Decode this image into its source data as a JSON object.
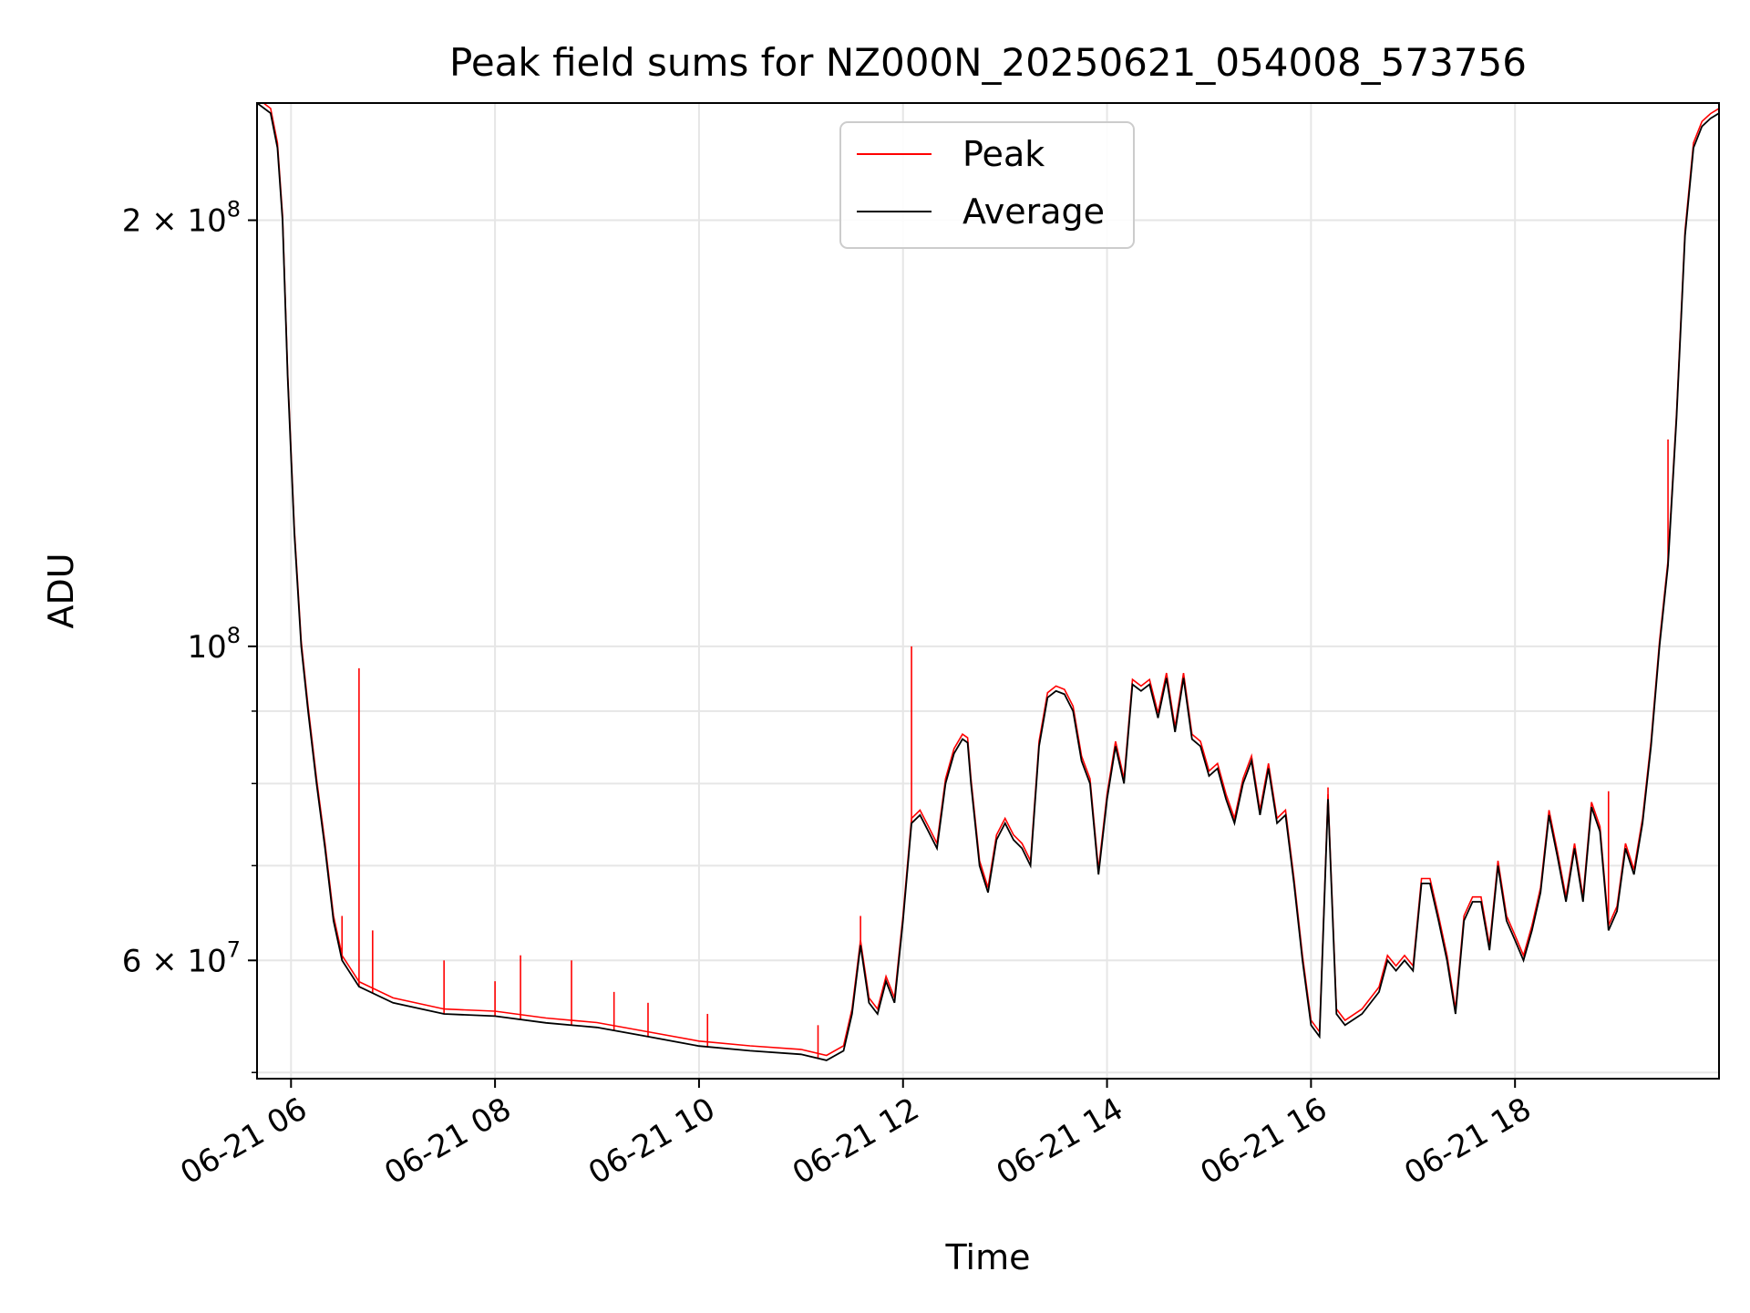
{
  "chart_data": {
    "type": "line",
    "title": "Peak field sums for NZ000N_20250621_054008_573756",
    "xlabel": "Time",
    "ylabel": "ADU",
    "yscale": "log",
    "xlim": [
      "2025-06-21 05:40",
      "2025-06-21 20:00"
    ],
    "ylim": [
      49500000.0,
      242000000.0
    ],
    "grid": true,
    "legend_position": "top-center",
    "x_tick_labels": [
      "06-21 06",
      "06-21 08",
      "06-21 10",
      "06-21 12",
      "06-21 14",
      "06-21 16",
      "06-21 18"
    ],
    "y_tick_labels": [
      {
        "value": 200000000.0,
        "mantissa": "2",
        "exponent": "8"
      },
      {
        "value": 100000000.0,
        "mantissa": "",
        "exponent": "8"
      },
      {
        "value": 60000000.0,
        "mantissa": "6",
        "exponent": "7"
      }
    ],
    "y_minor_gridlines": [
      50000000.0,
      70000000.0,
      80000000.0,
      90000000.0
    ],
    "series": [
      {
        "name": "Average",
        "color": "#000000",
        "points": [
          [
            "05:40",
            242000000.0
          ],
          [
            "05:48",
            238000000.0
          ],
          [
            "05:52",
            225000000.0
          ],
          [
            "05:55",
            200000000.0
          ],
          [
            "05:58",
            155000000.0
          ],
          [
            "06:02",
            120000000.0
          ],
          [
            "06:06",
            100000000.0
          ],
          [
            "06:10",
            90000000.0
          ],
          [
            "06:15",
            80000000.0
          ],
          [
            "06:20",
            72000000.0
          ],
          [
            "06:25",
            64000000.0
          ],
          [
            "06:30",
            60000000.0
          ],
          [
            "06:40",
            57500000.0
          ],
          [
            "07:00",
            56000000.0
          ],
          [
            "07:30",
            55000000.0
          ],
          [
            "08:00",
            54800000.0
          ],
          [
            "08:30",
            54200000.0
          ],
          [
            "09:00",
            53800000.0
          ],
          [
            "09:30",
            53000000.0
          ],
          [
            "10:00",
            52200000.0
          ],
          [
            "10:30",
            51800000.0
          ],
          [
            "11:00",
            51500000.0
          ],
          [
            "11:15",
            51000000.0
          ],
          [
            "11:25",
            51800000.0
          ],
          [
            "11:30",
            55000000.0
          ],
          [
            "11:35",
            61500000.0
          ],
          [
            "11:40",
            56000000.0
          ],
          [
            "11:45",
            55000000.0
          ],
          [
            "11:50",
            58000000.0
          ],
          [
            "11:55",
            56000000.0
          ],
          [
            "12:00",
            64000000.0
          ],
          [
            "12:05",
            75000000.0
          ],
          [
            "12:10",
            76000000.0
          ],
          [
            "12:15",
            74000000.0
          ],
          [
            "12:20",
            72000000.0
          ],
          [
            "12:25",
            80000000.0
          ],
          [
            "12:30",
            84000000.0
          ],
          [
            "12:35",
            86000000.0
          ],
          [
            "12:38",
            85500000.0
          ],
          [
            "12:40",
            80000000.0
          ],
          [
            "12:45",
            70000000.0
          ],
          [
            "12:50",
            67000000.0
          ],
          [
            "12:55",
            73000000.0
          ],
          [
            "13:00",
            75000000.0
          ],
          [
            "13:05",
            73000000.0
          ],
          [
            "13:10",
            72000000.0
          ],
          [
            "13:15",
            70000000.0
          ],
          [
            "13:20",
            85000000.0
          ],
          [
            "13:25",
            92000000.0
          ],
          [
            "13:30",
            93000000.0
          ],
          [
            "13:35",
            92500000.0
          ],
          [
            "13:40",
            90000000.0
          ],
          [
            "13:45",
            83000000.0
          ],
          [
            "13:50",
            80000000.0
          ],
          [
            "13:55",
            69000000.0
          ],
          [
            "14:00",
            78000000.0
          ],
          [
            "14:05",
            85000000.0
          ],
          [
            "14:10",
            80000000.0
          ],
          [
            "14:15",
            94000000.0
          ],
          [
            "14:20",
            93000000.0
          ],
          [
            "14:25",
            94000000.0
          ],
          [
            "14:30",
            89000000.0
          ],
          [
            "14:35",
            95000000.0
          ],
          [
            "14:40",
            87000000.0
          ],
          [
            "14:45",
            95000000.0
          ],
          [
            "14:50",
            86000000.0
          ],
          [
            "14:55",
            85000000.0
          ],
          [
            "15:00",
            81000000.0
          ],
          [
            "15:05",
            82000000.0
          ],
          [
            "15:10",
            78000000.0
          ],
          [
            "15:15",
            75000000.0
          ],
          [
            "15:20",
            80000000.0
          ],
          [
            "15:25",
            83000000.0
          ],
          [
            "15:30",
            76000000.0
          ],
          [
            "15:35",
            82000000.0
          ],
          [
            "15:40",
            75000000.0
          ],
          [
            "15:45",
            76000000.0
          ],
          [
            "15:50",
            68000000.0
          ],
          [
            "15:55",
            60000000.0
          ],
          [
            "16:00",
            54000000.0
          ],
          [
            "16:05",
            53000000.0
          ],
          [
            "16:10",
            78000000.0
          ],
          [
            "16:15",
            55000000.0
          ],
          [
            "16:20",
            54000000.0
          ],
          [
            "16:30",
            55000000.0
          ],
          [
            "16:40",
            57000000.0
          ],
          [
            "16:45",
            60000000.0
          ],
          [
            "16:50",
            59000000.0
          ],
          [
            "16:55",
            60000000.0
          ],
          [
            "17:00",
            59000000.0
          ],
          [
            "17:05",
            68000000.0
          ],
          [
            "17:10",
            68000000.0
          ],
          [
            "17:15",
            64000000.0
          ],
          [
            "17:20",
            60000000.0
          ],
          [
            "17:25",
            55000000.0
          ],
          [
            "17:30",
            64000000.0
          ],
          [
            "17:35",
            66000000.0
          ],
          [
            "17:40",
            66000000.0
          ],
          [
            "17:45",
            61000000.0
          ],
          [
            "17:50",
            70000000.0
          ],
          [
            "17:55",
            64000000.0
          ],
          [
            "18:00",
            62000000.0
          ],
          [
            "18:05",
            60000000.0
          ],
          [
            "18:10",
            63000000.0
          ],
          [
            "18:15",
            67000000.0
          ],
          [
            "18:20",
            76000000.0
          ],
          [
            "18:25",
            71000000.0
          ],
          [
            "18:30",
            66000000.0
          ],
          [
            "18:35",
            72000000.0
          ],
          [
            "18:40",
            66000000.0
          ],
          [
            "18:45",
            77000000.0
          ],
          [
            "18:50",
            74000000.0
          ],
          [
            "18:55",
            63000000.0
          ],
          [
            "19:00",
            65000000.0
          ],
          [
            "19:05",
            72000000.0
          ],
          [
            "19:10",
            69000000.0
          ],
          [
            "19:15",
            75000000.0
          ],
          [
            "19:20",
            85000000.0
          ],
          [
            "19:25",
            100000000.0
          ],
          [
            "19:30",
            114000000.0
          ],
          [
            "19:35",
            145000000.0
          ],
          [
            "19:40",
            195000000.0
          ],
          [
            "19:45",
            225000000.0
          ],
          [
            "19:50",
            233000000.0
          ],
          [
            "19:55",
            236000000.0
          ],
          [
            "20:00",
            238000000.0
          ]
        ]
      },
      {
        "name": "Peak",
        "color": "#ff0000",
        "spikes": [
          [
            "06:40",
            96500000.0
          ],
          [
            "06:30",
            64500000.0
          ],
          [
            "06:48",
            63000000.0
          ],
          [
            "07:30",
            60000000.0
          ],
          [
            "08:00",
            58000000.0
          ],
          [
            "08:15",
            60500000.0
          ],
          [
            "08:45",
            60000000.0
          ],
          [
            "09:10",
            57000000.0
          ],
          [
            "09:30",
            56000000.0
          ],
          [
            "10:05",
            55000000.0
          ],
          [
            "11:10",
            54000000.0
          ],
          [
            "11:35",
            64500000.0
          ],
          [
            "12:05",
            100000000.0
          ],
          [
            "16:10",
            79500000.0
          ],
          [
            "18:55",
            79000000.0
          ],
          [
            "19:30",
            140000000.0
          ]
        ]
      }
    ]
  }
}
